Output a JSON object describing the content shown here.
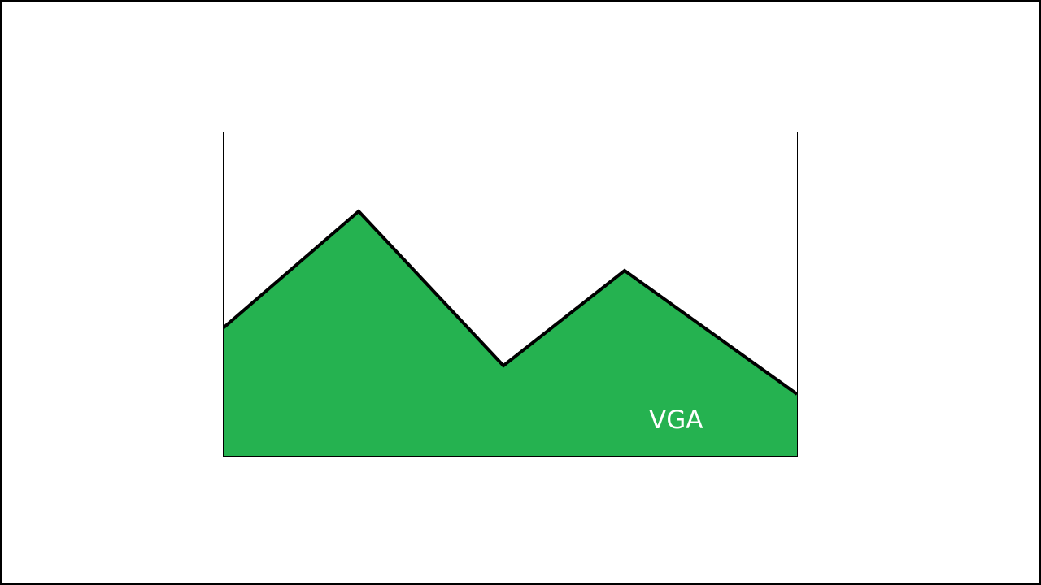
{
  "caption": "VGA",
  "colors": {
    "mountain_fill": "#25b250",
    "outline": "#000000",
    "background": "#ffffff",
    "caption_text": "#ffffff"
  }
}
